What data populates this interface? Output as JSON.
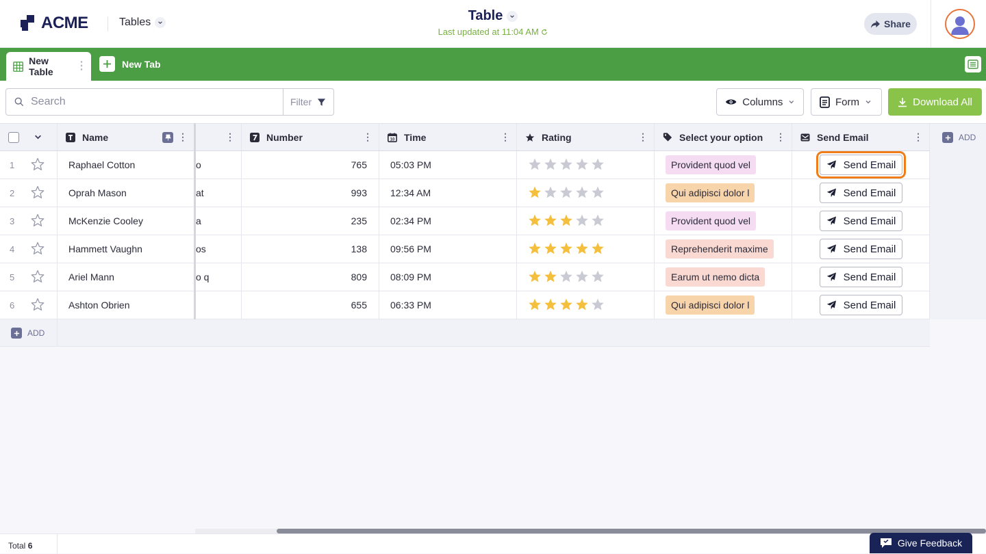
{
  "header": {
    "logo_text": "ACME",
    "nav_label": "Tables",
    "title": "Table",
    "last_updated": "Last updated at 11:04 AM",
    "share_label": "Share"
  },
  "tabs": {
    "active_label": "New Table",
    "new_tab_label": "New Tab"
  },
  "toolbar": {
    "search_placeholder": "Search",
    "filter_label": "Filter",
    "columns_label": "Columns",
    "form_label": "Form",
    "download_label": "Download All"
  },
  "columns": {
    "name": "Name",
    "number": "Number",
    "time": "Time",
    "rating": "Rating",
    "select": "Select your option",
    "send": "Send Email",
    "add": "ADD"
  },
  "rows": [
    {
      "num": "1",
      "name": "Raphael Cotton",
      "hidden": "o",
      "number": "765",
      "time": "05:03 PM",
      "rating": 0,
      "option": "Provident quod vel",
      "button": "Send Email"
    },
    {
      "num": "2",
      "name": "Oprah Mason",
      "hidden": "at",
      "number": "993",
      "time": "12:34 AM",
      "rating": 1,
      "option": "Qui adipisci dolor l",
      "button": "Send Email"
    },
    {
      "num": "3",
      "name": "McKenzie Cooley",
      "hidden": "a",
      "number": "235",
      "time": "02:34 PM",
      "rating": 3,
      "option": "Provident quod vel",
      "button": "Send Email"
    },
    {
      "num": "4",
      "name": "Hammett Vaughn",
      "hidden": "os",
      "number": "138",
      "time": "09:56 PM",
      "rating": 5,
      "option": "Reprehenderit maxime",
      "button": "Send Email"
    },
    {
      "num": "5",
      "name": "Ariel Mann",
      "hidden": "o q",
      "number": "809",
      "time": "08:09 PM",
      "rating": 2,
      "option": "Earum ut nemo dicta",
      "button": "Send Email"
    },
    {
      "num": "6",
      "name": "Ashton Obrien",
      "hidden": "",
      "number": "655",
      "time": "06:33 PM",
      "rating": 4,
      "option": "Qui adipisci dolor l",
      "button": "Send Email"
    }
  ],
  "add_row_label": "ADD",
  "footer": {
    "total_label": "Total",
    "total_count": "6",
    "feedback_label": "Give Feedback"
  },
  "colors": {
    "brand_green": "#4c9e44",
    "download_green": "#8ac34a",
    "star_on": "#f5bf3e",
    "star_off": "#c9cad3",
    "highlight": "#ef7d1a",
    "chip_pink": "#f6dcf3",
    "chip_orange": "#f8d4ab",
    "chip_salmon": "#f9d9d2"
  },
  "option_colors": {
    "Provident quod vel": "#f6dcf3",
    "Qui adipisci dolor l": "#f8d4ab",
    "Reprehenderit maxime": "#f9d9d2",
    "Earum ut nemo dicta": "#f9d9d2"
  }
}
